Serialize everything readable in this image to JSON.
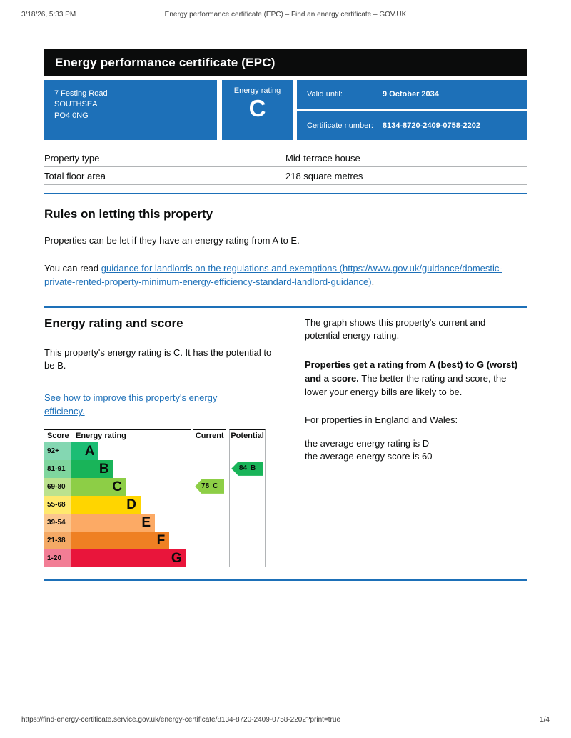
{
  "print_header": {
    "datetime": "3/18/26, 5:33 PM",
    "title": "Energy performance certificate (EPC) – Find an energy certificate – GOV.UK"
  },
  "banner": {
    "title": "Energy performance certificate (EPC)"
  },
  "summary": {
    "address_lines": [
      "7 Festing Road",
      "SOUTHSEA",
      "PO4 0NG"
    ],
    "energy_rating_label": "Energy rating",
    "energy_rating_value": "C",
    "valid_until_label": "Valid until:",
    "valid_until_value": "9 October 2034",
    "certificate_number_label": "Certificate number:",
    "certificate_number_value": "8134-8720-2409-0758-2202"
  },
  "property_details": {
    "rows": [
      {
        "label": "Property type",
        "value": "Mid-terrace house"
      },
      {
        "label": "Total floor area",
        "value": "218 square metres"
      }
    ]
  },
  "rules_section": {
    "heading": "Rules on letting this property",
    "para_1": "Properties can be let if they have an energy rating from A to E.",
    "para_2_prefix": "You can read ",
    "para_2_link": "guidance for landlords on the regulations and exemptions (https://www.gov.uk/guidance/domestic-private-rented-property-minimum-energy-efficiency-standard-landlord-guidance)",
    "para_2_suffix": "."
  },
  "rating_section": {
    "heading": "Energy rating and score",
    "left_para_1": "This property's energy rating is C. It has the potential to be B.",
    "improve_link": "See how to improve this property's energy efficiency.",
    "right_para_1": "The graph shows this property's current and potential energy rating.",
    "right_para_2_bold": "Properties get a rating from A (best) to G (worst) and a score.",
    "right_para_2_rest": " The better the rating and score, the lower your energy bills are likely to be.",
    "right_para_3": "For properties in England and Wales:",
    "average_line_1": "the average energy rating is D",
    "average_line_2": "the average energy score is 60"
  },
  "chart_data": {
    "type": "bar",
    "title": "Energy rating and score graph",
    "columns": [
      "Score",
      "Energy rating",
      "Current",
      "Potential"
    ],
    "bands": [
      {
        "score": "92+",
        "rating": "A",
        "color": "#1cbd74",
        "score_bg": "#84d7b2",
        "width_pct": 23
      },
      {
        "score": "81-91",
        "rating": "B",
        "color": "#19b459",
        "score_bg": "#7fd69e",
        "width_pct": 35
      },
      {
        "score": "69-80",
        "rating": "C",
        "color": "#8dce46",
        "score_bg": "#bce28e",
        "width_pct": 46
      },
      {
        "score": "55-68",
        "rating": "D",
        "color": "#ffd500",
        "score_bg": "#ffe96e",
        "width_pct": 58
      },
      {
        "score": "39-54",
        "rating": "E",
        "color": "#fcaa65",
        "score_bg": "#fbc68f",
        "width_pct": 70
      },
      {
        "score": "21-38",
        "rating": "F",
        "color": "#ef8023",
        "score_bg": "#f4a965",
        "width_pct": 82
      },
      {
        "score": "1-20",
        "rating": "G",
        "color": "#e9153b",
        "score_bg": "#f27d95",
        "width_pct": 96
      }
    ],
    "current": {
      "score": 78,
      "rating": "C",
      "band_index": 2,
      "color": "#8dce46"
    },
    "potential": {
      "score": 84,
      "rating": "B",
      "band_index": 1,
      "color": "#19b459"
    }
  },
  "footer": {
    "url": "https://find-energy-certificate.service.gov.uk/energy-certificate/8134-8720-2409-0758-2202?print=true",
    "page_indicator": "1/4"
  },
  "colors": {
    "govuk_blue": "#1d70b8",
    "banner_background": "#0b0c0c",
    "link_color": "#1d70b8"
  }
}
